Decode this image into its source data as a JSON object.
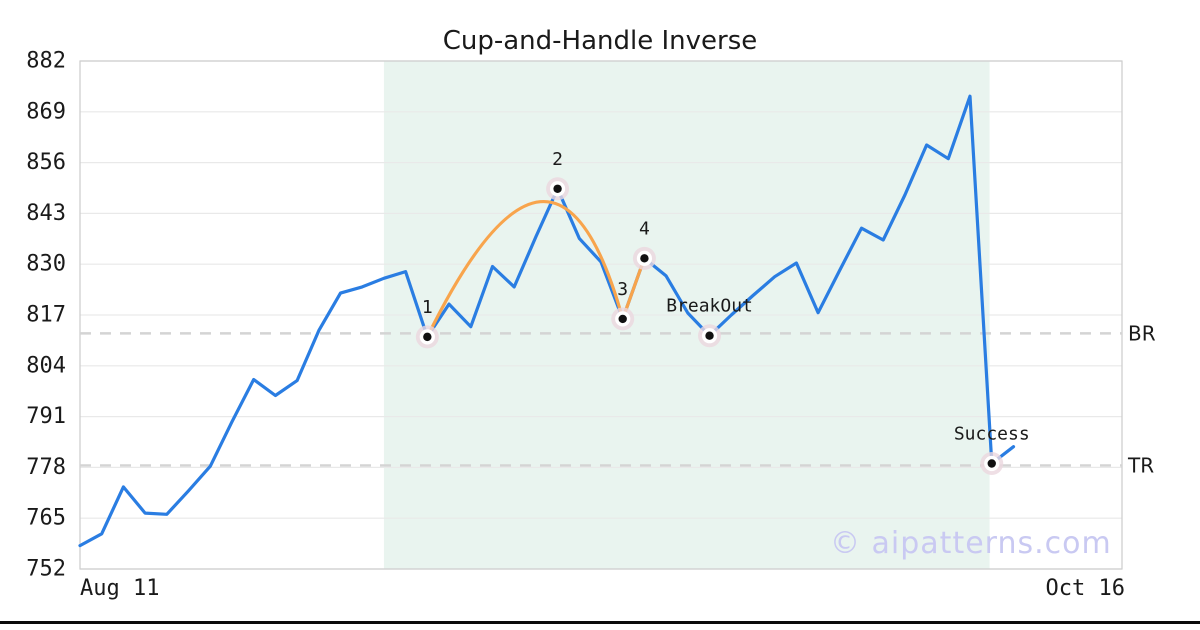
{
  "chart_data": {
    "type": "line",
    "title": "Cup-and-Handle Inverse",
    "watermark": "© aipatterns.com",
    "x_tick_labels": [
      "Aug 11",
      "Oct 16"
    ],
    "y_ticks": [
      752,
      765,
      778,
      791,
      804,
      817,
      830,
      843,
      856,
      869,
      882
    ],
    "ylim": [
      752,
      882
    ],
    "x_index_max": 48,
    "grid": "horizontal-only",
    "series": [
      {
        "name": "price",
        "color": "#2a7de2",
        "values": [
          758.0,
          761.0,
          773.0,
          766.3,
          766.0,
          772.0,
          778.3,
          789.7,
          800.5,
          796.4,
          800.2,
          813.0,
          822.6,
          824.2,
          826.4,
          828.1,
          811.4,
          819.8,
          814.0,
          829.4,
          824.2,
          837.0,
          849.3,
          836.6,
          830.6,
          816.0,
          831.5,
          827.0,
          817.5,
          811.7,
          817.0,
          822.0,
          826.8,
          830.3,
          817.6,
          828.5,
          839.2,
          836.2,
          847.7,
          860.5,
          857.0,
          873.0,
          779.0,
          783.3
        ]
      }
    ],
    "pattern_overlay": {
      "name": "inverse-cup-and-handle",
      "color": "#f8a44c",
      "arc": {
        "from_index": 16,
        "from_value": 811.4,
        "apex_index": 21.2,
        "apex_value": 846.0,
        "to_index": 25,
        "to_value": 816.0
      },
      "handle": {
        "to_index": 26,
        "to_value": 831.5
      }
    },
    "markers": [
      {
        "label": "1",
        "index": 16,
        "value": 811.4
      },
      {
        "label": "2",
        "index": 22,
        "value": 849.3
      },
      {
        "label": "3",
        "index": 25,
        "value": 816.0
      },
      {
        "label": "4",
        "index": 26,
        "value": 831.5
      },
      {
        "label": "BreakOut",
        "index": 29,
        "value": 811.7
      },
      {
        "label": "Success",
        "index": 42,
        "value": 779.0
      }
    ],
    "hlines": [
      {
        "label": "BR",
        "value": 812.3
      },
      {
        "label": "TR",
        "value": 778.5
      }
    ],
    "shaded_region": {
      "from_index": 14.0,
      "to_index": 41.9
    },
    "colors": {
      "line": "#2a7de2",
      "pattern": "#f8a44c",
      "halo": "#ebd7de",
      "marker_dot": "#111111",
      "dashed": "#d4d4d4",
      "shade": "#e9f4ef",
      "grid": "#e9e9e9",
      "spine": "#cccccc",
      "watermark": "#c9c9f2",
      "bottom_bar": "#0a0a0a",
      "text": "#1a1a1a"
    }
  }
}
